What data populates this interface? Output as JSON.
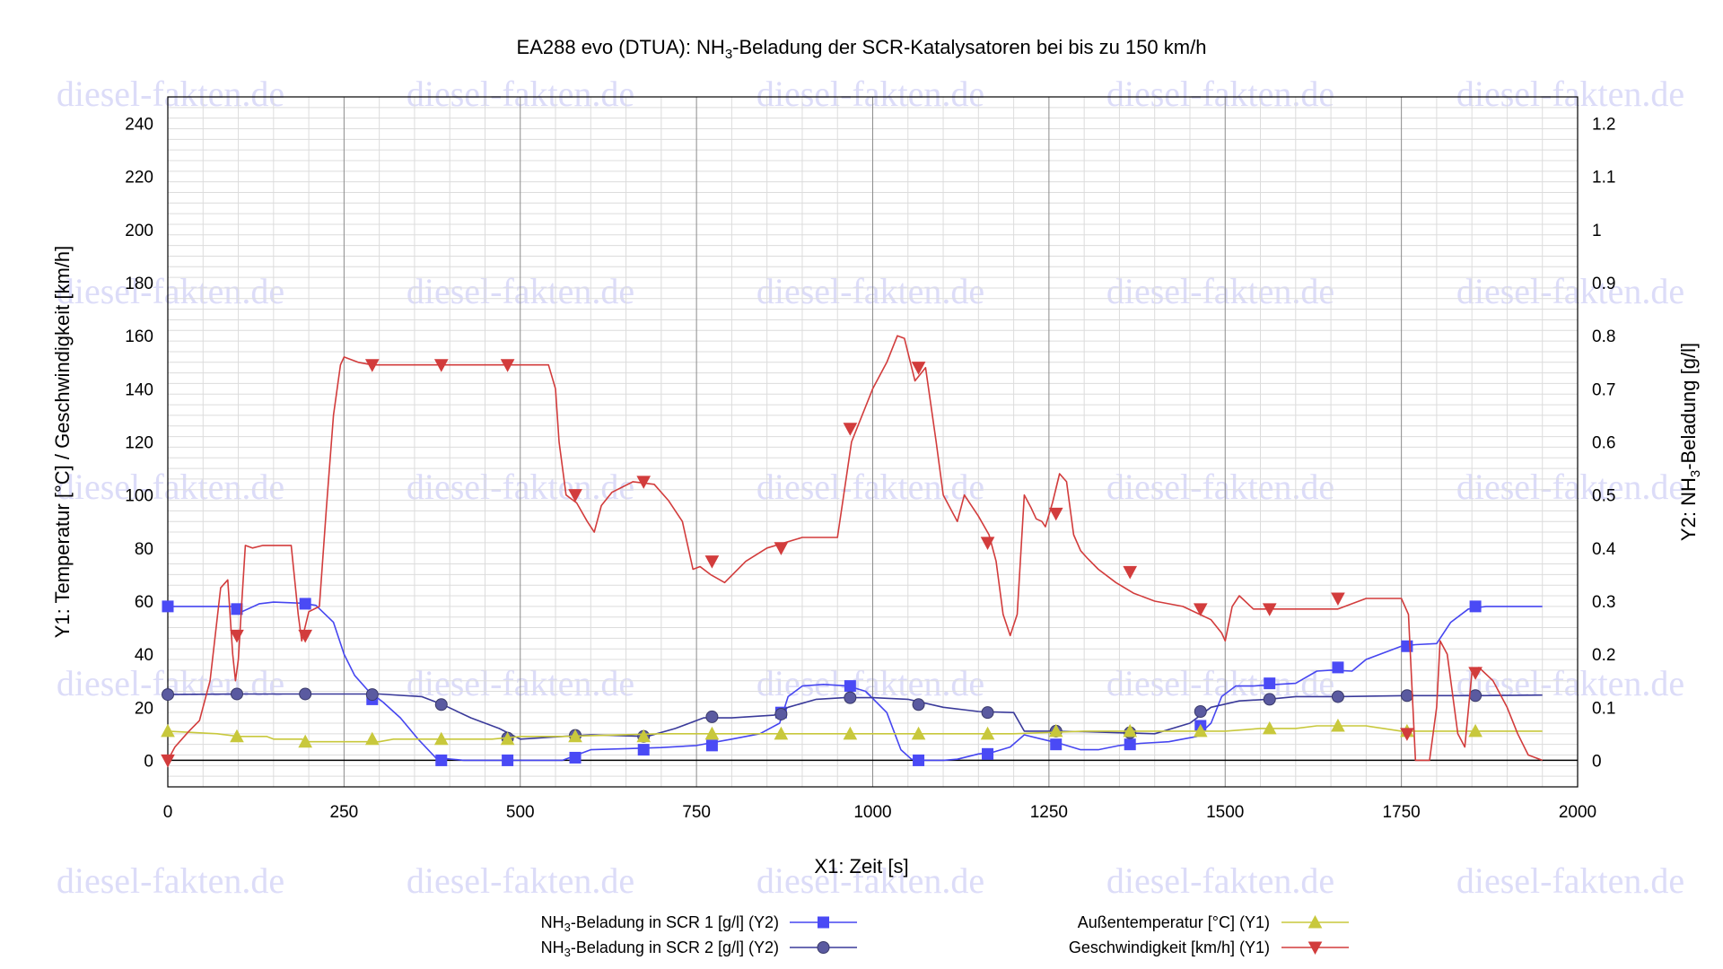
{
  "chart_data": {
    "type": "line",
    "title": "EA288 evo (DTUA): NH3-Beladung der SCR-Katalysatoren bei bis zu 150 km/h",
    "title_parts": {
      "pre": "EA288 evo (DTUA): NH",
      "sub": "3",
      "post": "-Beladung der SCR-Katalysatoren bei bis zu 150 km/h"
    },
    "xlabel": "X1: Zeit [s]",
    "ylabel": "Y1: Temperatur [°C] / Geschwindigkeit [km/h]",
    "y2label_parts": {
      "pre": "Y2: NH",
      "sub": "3",
      "post": "-Beladung [g/l]"
    },
    "xlim": [
      0,
      2000
    ],
    "ylim": [
      -10,
      250
    ],
    "y2lim": [
      -0.05,
      1.25
    ],
    "x_ticks": [
      "0",
      "250",
      "500",
      "750",
      "1000",
      "1250",
      "1500",
      "1750",
      "2000"
    ],
    "y_ticks": [
      "0",
      "20",
      "40",
      "60",
      "80",
      "100",
      "120",
      "140",
      "160",
      "180",
      "200",
      "220",
      "240"
    ],
    "y2_ticks": [
      "0",
      "0.1",
      "0.2",
      "0.3",
      "0.4",
      "0.5",
      "0.6",
      "0.7",
      "0.8",
      "0.9",
      "1",
      "1.1",
      "1.2"
    ],
    "grid": true,
    "legend_placement": "bottom",
    "watermark": "diesel-fakten.de",
    "series": [
      {
        "name": "NH3-Beladung in SCR 1 [g/l] (Y2)",
        "name_parts": {
          "pre": "NH",
          "sub": "3",
          "post": "-Beladung in SCR 1 [g/l] (Y2)"
        },
        "axis": "y2",
        "color": "#4646f0",
        "marker": "square",
        "x": [
          0,
          90,
          105,
          130,
          150,
          190,
          210,
          235,
          250,
          265,
          285,
          305,
          330,
          355,
          380,
          420,
          500,
          560,
          580,
          600,
          650,
          700,
          750,
          800,
          840,
          868,
          880,
          900,
          930,
          965,
          990,
          1020,
          1040,
          1055,
          1075,
          1100,
          1120,
          1150,
          1170,
          1195,
          1215,
          1240,
          1265,
          1295,
          1320,
          1350,
          1380,
          1420,
          1460,
          1480,
          1495,
          1515,
          1540,
          1560,
          1600,
          1630,
          1650,
          1680,
          1700,
          1750,
          1770,
          1800,
          1820,
          1845,
          1870,
          1920,
          1950
        ],
        "y": [
          0.29,
          0.29,
          0.28,
          0.295,
          0.298,
          0.296,
          0.292,
          0.26,
          0.2,
          0.16,
          0.13,
          0.11,
          0.08,
          0.04,
          0.005,
          0.0,
          0.0,
          0.0,
          0.01,
          0.02,
          0.022,
          0.024,
          0.028,
          0.04,
          0.05,
          0.07,
          0.12,
          0.14,
          0.143,
          0.14,
          0.13,
          0.09,
          0.02,
          0.002,
          0.0,
          0.0,
          0.002,
          0.012,
          0.015,
          0.025,
          0.048,
          0.04,
          0.032,
          0.02,
          0.02,
          0.028,
          0.032,
          0.035,
          0.045,
          0.07,
          0.12,
          0.14,
          0.14,
          0.142,
          0.145,
          0.168,
          0.17,
          0.168,
          0.19,
          0.215,
          0.218,
          0.22,
          0.26,
          0.285,
          0.29,
          0.29,
          0.29
        ],
        "marker_x": [
          0,
          98,
          195,
          290,
          388,
          482,
          578,
          675,
          772,
          870,
          968,
          1065,
          1163,
          1260,
          1365,
          1465,
          1563,
          1660,
          1758,
          1855
        ],
        "marker_y": [
          0.29,
          0.285,
          0.295,
          0.115,
          0.0,
          0.0,
          0.005,
          0.02,
          0.028,
          0.09,
          0.14,
          0.0,
          0.012,
          0.03,
          0.03,
          0.065,
          0.145,
          0.175,
          0.215,
          0.29
        ]
      },
      {
        "name": "NH3-Beladung in SCR 2 [g/l] (Y2)",
        "name_parts": {
          "pre": "NH",
          "sub": "3",
          "post": "-Beladung in SCR 2 [g/l] (Y2)"
        },
        "axis": "y2",
        "color": "#3a3a9a",
        "marker": "circle",
        "x": [
          0,
          100,
          200,
          300,
          360,
          390,
          430,
          470,
          500,
          560,
          600,
          680,
          720,
          760,
          800,
          860,
          880,
          920,
          960,
          1000,
          1050,
          1100,
          1150,
          1200,
          1215,
          1250,
          1300,
          1350,
          1400,
          1450,
          1480,
          1520,
          1560,
          1600,
          1660,
          1760,
          1860,
          1950
        ],
        "y": [
          0.124,
          0.125,
          0.125,
          0.125,
          0.12,
          0.105,
          0.08,
          0.06,
          0.04,
          0.045,
          0.048,
          0.045,
          0.06,
          0.08,
          0.08,
          0.085,
          0.1,
          0.115,
          0.118,
          0.118,
          0.115,
          0.1,
          0.092,
          0.09,
          0.055,
          0.055,
          0.054,
          0.052,
          0.05,
          0.07,
          0.1,
          0.112,
          0.115,
          0.12,
          0.12,
          0.122,
          0.122,
          0.123
        ],
        "marker_x": [
          0,
          98,
          195,
          290,
          388,
          482,
          578,
          675,
          772,
          870,
          968,
          1065,
          1163,
          1260,
          1365,
          1465,
          1563,
          1660,
          1758,
          1855
        ],
        "marker_y": [
          0.124,
          0.125,
          0.125,
          0.124,
          0.105,
          0.042,
          0.047,
          0.045,
          0.082,
          0.087,
          0.118,
          0.105,
          0.09,
          0.055,
          0.052,
          0.092,
          0.115,
          0.12,
          0.122,
          0.122
        ]
      },
      {
        "name": "Außentemperatur [°C] (Y1)",
        "axis": "y1",
        "color": "#c8c83c",
        "marker": "triangle-up",
        "x": [
          0,
          70,
          100,
          140,
          150,
          190,
          200,
          240,
          250,
          300,
          320,
          380,
          460,
          500,
          560,
          700,
          800,
          900,
          1000,
          1100,
          1200,
          1300,
          1350,
          1400,
          1500,
          1550,
          1600,
          1630,
          1700,
          1750,
          1800,
          1950
        ],
        "y": [
          11,
          10,
          9,
          9,
          8,
          8,
          7,
          7,
          7,
          7,
          8,
          8,
          8,
          9,
          9,
          10,
          10,
          10,
          10,
          10,
          10,
          11,
          11,
          11,
          11,
          12,
          12,
          13,
          13,
          11,
          11,
          11
        ],
        "marker_x": [
          0,
          98,
          195,
          290,
          388,
          482,
          578,
          675,
          772,
          870,
          968,
          1065,
          1163,
          1260,
          1365,
          1465,
          1563,
          1660,
          1758,
          1855
        ],
        "marker_y": [
          11,
          9,
          7,
          8,
          8,
          8,
          9,
          9,
          10,
          10,
          10,
          10,
          10,
          11,
          11,
          11,
          12,
          13,
          11,
          11
        ]
      },
      {
        "name": "Geschwindigkeit [km/h] (Y1)",
        "axis": "y1",
        "color": "#d23c3c",
        "marker": "triangle-down",
        "x": [
          0,
          10,
          20,
          30,
          45,
          60,
          75,
          85,
          92,
          96,
          100,
          105,
          110,
          120,
          135,
          150,
          175,
          185,
          190,
          200,
          215,
          225,
          235,
          245,
          250,
          270,
          290,
          310,
          390,
          480,
          500,
          540,
          550,
          555,
          565,
          580,
          595,
          605,
          615,
          630,
          660,
          690,
          710,
          730,
          745,
          755,
          770,
          790,
          820,
          850,
          900,
          950,
          970,
          1000,
          1020,
          1035,
          1045,
          1060,
          1075,
          1090,
          1100,
          1120,
          1130,
          1150,
          1165,
          1175,
          1185,
          1195,
          1205,
          1215,
          1225,
          1232,
          1240,
          1245,
          1255,
          1265,
          1275,
          1285,
          1295,
          1305,
          1320,
          1345,
          1370,
          1400,
          1440,
          1480,
          1495,
          1500,
          1510,
          1520,
          1540,
          1600,
          1660,
          1700,
          1750,
          1760,
          1770,
          1790,
          1800,
          1805,
          1815,
          1830,
          1840,
          1850,
          1860,
          1880,
          1900,
          1915,
          1930,
          1950
        ],
        "y": [
          0,
          5,
          8,
          11,
          15,
          30,
          65,
          68,
          40,
          30,
          38,
          60,
          81,
          80,
          81,
          81,
          81,
          55,
          45,
          56,
          58,
          95,
          130,
          149,
          152,
          150,
          149,
          149,
          149,
          149,
          149,
          149,
          140,
          120,
          100,
          97,
          90,
          86,
          96,
          101,
          105,
          104,
          98,
          90,
          72,
          73,
          70,
          67,
          75,
          80,
          84,
          84,
          120,
          140,
          150,
          160,
          159,
          143,
          148,
          120,
          100,
          90,
          100,
          92,
          85,
          75,
          55,
          47,
          55,
          100,
          95,
          91,
          90,
          88,
          97,
          108,
          105,
          85,
          79,
          76,
          72,
          67,
          63,
          60,
          58,
          53,
          48,
          45,
          58,
          62,
          57,
          57,
          57,
          61,
          61,
          55,
          0,
          0,
          20,
          45,
          40,
          10,
          5,
          33,
          35,
          30,
          20,
          10,
          2,
          0
        ],
        "marker_x": [
          0,
          98,
          195,
          290,
          388,
          482,
          578,
          675,
          772,
          870,
          968,
          1065,
          1163,
          1260,
          1365,
          1465,
          1563,
          1660,
          1758,
          1855
        ],
        "marker_y": [
          0,
          47,
          47,
          149,
          149,
          149,
          100,
          105,
          75,
          80,
          125,
          148,
          82,
          93,
          71,
          57,
          57,
          61,
          10,
          33
        ]
      }
    ]
  }
}
